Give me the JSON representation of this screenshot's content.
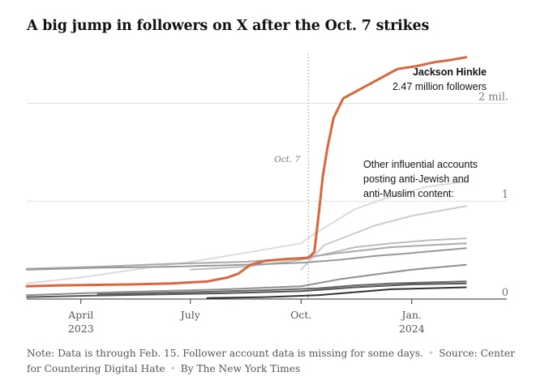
{
  "title": "A big jump in followers on X after the Oct. 7 strikes",
  "note": {
    "text": "Note: Data is through Feb. 15. Follower account data is missing for some days.",
    "source": "Source: Center for Countering Digital Hate",
    "credit": "By The New York Times"
  },
  "chart_data": {
    "type": "line",
    "y_unit": "million followers",
    "ylim": [
      0,
      2.6
    ],
    "y_ticks": [
      {
        "value": 0,
        "label": "0"
      },
      {
        "value": 1,
        "label": "1"
      },
      {
        "value": 2,
        "label": "2 mil."
      }
    ],
    "x_ticks": [
      {
        "date": "2023-04-01",
        "label": "April",
        "sublabel": "2023"
      },
      {
        "date": "2023-07-01",
        "label": "July",
        "sublabel": ""
      },
      {
        "date": "2023-10-01",
        "label": "Oct.",
        "sublabel": ""
      },
      {
        "date": "2024-01-01",
        "label": "Jan.",
        "sublabel": "2024"
      }
    ],
    "xlim": [
      "2023-02-15",
      "2024-03-20"
    ],
    "grid": true,
    "event_marker": {
      "date": "2023-10-07",
      "label": "Oct. 7"
    },
    "highlight_annotation": {
      "name": "Jackson Hinkle",
      "value_label": "2.47 million followers"
    },
    "others_annotation": "Other influential accounts posting anti-Jewish and anti-Muslim content:",
    "series": [
      {
        "name": "Jackson Hinkle",
        "color": "#d9663c",
        "highlight": true,
        "points": [
          [
            "2023-02-15",
            0.13
          ],
          [
            "2023-03-15",
            0.14
          ],
          [
            "2023-04-15",
            0.145
          ],
          [
            "2023-05-15",
            0.15
          ],
          [
            "2023-06-15",
            0.16
          ],
          [
            "2023-07-15",
            0.18
          ],
          [
            "2023-08-01",
            0.22
          ],
          [
            "2023-08-10",
            0.26
          ],
          [
            "2023-08-20",
            0.35
          ],
          [
            "2023-09-01",
            0.39
          ],
          [
            "2023-09-20",
            0.41
          ],
          [
            "2023-10-07",
            0.42
          ],
          [
            "2023-10-12",
            0.48
          ],
          [
            "2023-10-16",
            0.9
          ],
          [
            "2023-10-19",
            1.25
          ],
          [
            "2023-10-23",
            1.55
          ],
          [
            "2023-10-28",
            1.85
          ],
          [
            "2023-11-05",
            2.05
          ],
          [
            "2023-11-20",
            2.15
          ],
          [
            "2023-12-05",
            2.25
          ],
          [
            "2023-12-20",
            2.35
          ],
          [
            "2024-01-05",
            2.38
          ],
          [
            "2024-01-20",
            2.42
          ],
          [
            "2024-02-01",
            2.44
          ],
          [
            "2024-02-15",
            2.47
          ]
        ]
      },
      {
        "color": "#dcdcdc",
        "points": [
          [
            "2023-02-15",
            0.16
          ],
          [
            "2023-04-01",
            0.22
          ],
          [
            "2023-05-15",
            0.3
          ],
          [
            "2023-07-01",
            0.38
          ],
          [
            "2023-08-15",
            0.47
          ],
          [
            "2023-10-01",
            0.57
          ],
          [
            "2023-10-10",
            0.65
          ],
          [
            "2023-11-15",
            0.92
          ],
          [
            "2023-12-15",
            1.05
          ],
          [
            "2024-01-15",
            1.15
          ],
          [
            "2024-02-15",
            1.2
          ]
        ]
      },
      {
        "color": "#cccccc",
        "points": [
          [
            "2023-10-01",
            0.3
          ],
          [
            "2023-10-20",
            0.55
          ],
          [
            "2023-11-10",
            0.65
          ],
          [
            "2023-12-01",
            0.75
          ],
          [
            "2024-01-01",
            0.85
          ],
          [
            "2024-02-15",
            0.95
          ]
        ]
      },
      {
        "color": "#bdbdbd",
        "points": [
          [
            "2023-07-01",
            0.3
          ],
          [
            "2023-08-15",
            0.33
          ],
          [
            "2023-10-01",
            0.4
          ],
          [
            "2023-10-25",
            0.47
          ],
          [
            "2023-11-15",
            0.53
          ],
          [
            "2023-12-15",
            0.57
          ],
          [
            "2024-01-15",
            0.6
          ],
          [
            "2024-02-15",
            0.62
          ]
        ]
      },
      {
        "color": "#a9a9a9",
        "points": [
          [
            "2023-02-15",
            0.31
          ],
          [
            "2023-04-15",
            0.33
          ],
          [
            "2023-06-15",
            0.36
          ],
          [
            "2023-08-15",
            0.38
          ],
          [
            "2023-10-01",
            0.42
          ],
          [
            "2023-11-01",
            0.47
          ],
          [
            "2023-12-15",
            0.53
          ],
          [
            "2024-02-15",
            0.57
          ]
        ]
      },
      {
        "color": "#999999",
        "points": [
          [
            "2023-02-15",
            0.3
          ],
          [
            "2023-04-15",
            0.32
          ],
          [
            "2023-06-15",
            0.33
          ],
          [
            "2023-08-15",
            0.35
          ],
          [
            "2023-10-01",
            0.37
          ],
          [
            "2023-11-01",
            0.4
          ],
          [
            "2023-12-01",
            0.44
          ],
          [
            "2024-01-01",
            0.47
          ],
          [
            "2024-02-15",
            0.52
          ]
        ]
      },
      {
        "color": "#8f8f8f",
        "points": [
          [
            "2023-02-15",
            0.04
          ],
          [
            "2023-05-01",
            0.07
          ],
          [
            "2023-08-01",
            0.1
          ],
          [
            "2023-10-01",
            0.13
          ],
          [
            "2023-11-01",
            0.2
          ],
          [
            "2023-12-01",
            0.25
          ],
          [
            "2024-01-01",
            0.3
          ],
          [
            "2024-02-15",
            0.35
          ]
        ]
      },
      {
        "color": "#666666",
        "points": [
          [
            "2023-04-15",
            0.05
          ],
          [
            "2023-07-01",
            0.07
          ],
          [
            "2023-09-01",
            0.09
          ],
          [
            "2023-10-15",
            0.11
          ],
          [
            "2023-11-15",
            0.14
          ],
          [
            "2023-12-15",
            0.16
          ],
          [
            "2024-02-15",
            0.18
          ]
        ]
      },
      {
        "color": "#555555",
        "points": [
          [
            "2023-02-15",
            0.02
          ],
          [
            "2023-05-01",
            0.04
          ],
          [
            "2023-08-01",
            0.06
          ],
          [
            "2023-10-01",
            0.08
          ],
          [
            "2023-11-15",
            0.12
          ],
          [
            "2024-01-01",
            0.15
          ],
          [
            "2024-02-15",
            0.16
          ]
        ]
      },
      {
        "color": "#333333",
        "points": [
          [
            "2023-07-15",
            0.01
          ],
          [
            "2023-09-01",
            0.02
          ],
          [
            "2023-10-15",
            0.04
          ],
          [
            "2023-11-15",
            0.07
          ],
          [
            "2023-12-15",
            0.1
          ],
          [
            "2024-01-15",
            0.11
          ],
          [
            "2024-02-15",
            0.12
          ]
        ]
      }
    ]
  }
}
